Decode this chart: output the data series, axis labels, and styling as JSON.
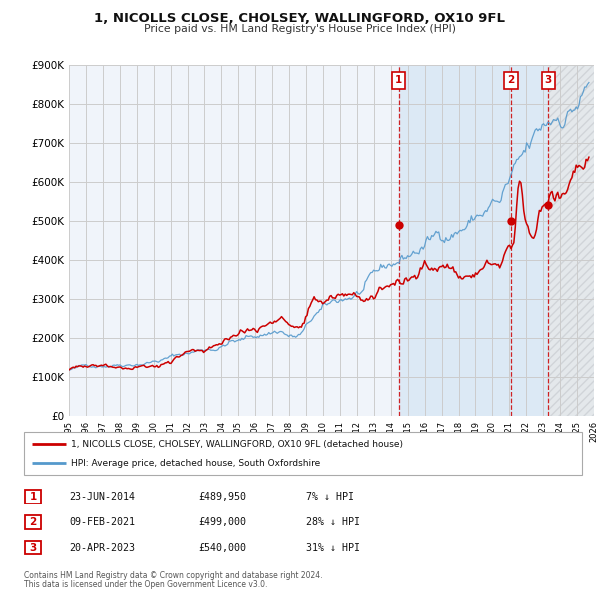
{
  "title": "1, NICOLLS CLOSE, CHOLSEY, WALLINGFORD, OX10 9FL",
  "subtitle": "Price paid vs. HM Land Registry's House Price Index (HPI)",
  "legend_red": "1, NICOLLS CLOSE, CHOLSEY, WALLINGFORD, OX10 9FL (detached house)",
  "legend_blue": "HPI: Average price, detached house, South Oxfordshire",
  "footnote1": "Contains HM Land Registry data © Crown copyright and database right 2024.",
  "footnote2": "This data is licensed under the Open Government Licence v3.0.",
  "transactions": [
    {
      "num": 1,
      "date": "23-JUN-2014",
      "price": "£489,950",
      "pct": "7% ↓ HPI",
      "year": 2014.47
    },
    {
      "num": 2,
      "date": "09-FEB-2021",
      "price": "£499,000",
      "pct": "28% ↓ HPI",
      "year": 2021.11
    },
    {
      "num": 3,
      "date": "20-APR-2023",
      "price": "£540,000",
      "pct": "31% ↓ HPI",
      "year": 2023.3
    }
  ],
  "transaction_values": [
    489950,
    499000,
    540000
  ],
  "ylim": [
    0,
    900000
  ],
  "yticks": [
    0,
    100000,
    200000,
    300000,
    400000,
    500000,
    600000,
    700000,
    800000,
    900000
  ],
  "ytick_labels": [
    "£0",
    "£100K",
    "£200K",
    "£300K",
    "£400K",
    "£500K",
    "£600K",
    "£700K",
    "£800K",
    "£900K"
  ],
  "xmin": 1995,
  "xmax": 2026,
  "red_color": "#cc0000",
  "blue_color": "#5599cc",
  "bg_plain": "#f0f4fa",
  "bg_shaded": "#dce9f5",
  "grid_color": "#cccccc",
  "shade_color": "#dce9f5"
}
